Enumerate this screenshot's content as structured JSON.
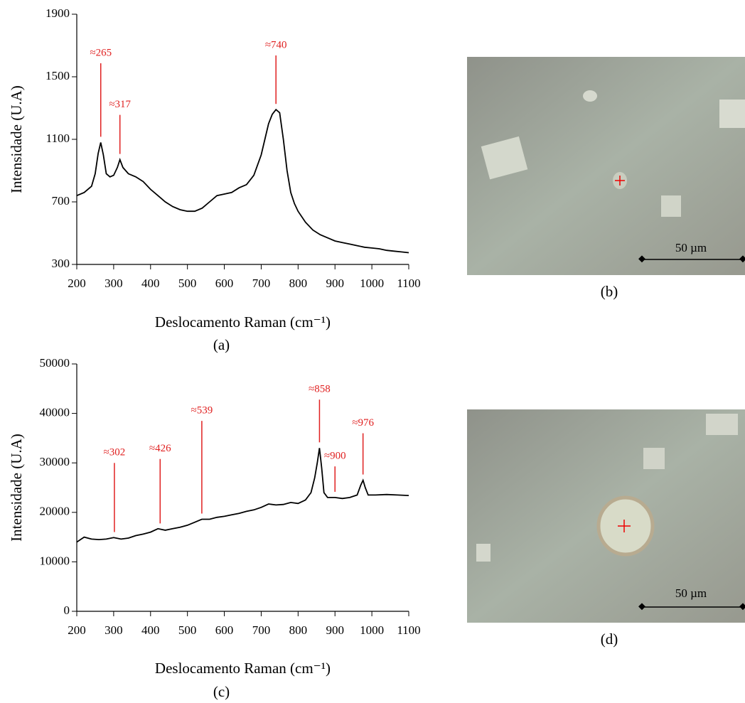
{
  "chart_data": [
    {
      "type": "line",
      "caption": "(a)",
      "ylabel": "Intensidade (U.A)",
      "xlabel": "Deslocamento Raman (cm⁻¹)",
      "color": "#000000",
      "xlim": [
        200,
        1100
      ],
      "xticks": [
        200,
        300,
        400,
        500,
        600,
        700,
        800,
        900,
        1000,
        1100
      ],
      "ylim": [
        300,
        1900
      ],
      "yticks": [
        300,
        700,
        1100,
        1500,
        1900
      ],
      "x": [
        200,
        220,
        240,
        250,
        258,
        265,
        272,
        280,
        290,
        300,
        310,
        317,
        325,
        340,
        360,
        380,
        400,
        420,
        440,
        460,
        480,
        500,
        520,
        540,
        560,
        580,
        600,
        620,
        640,
        660,
        680,
        700,
        710,
        720,
        730,
        740,
        750,
        760,
        770,
        780,
        790,
        800,
        820,
        840,
        860,
        880,
        900,
        920,
        940,
        960,
        980,
        1000,
        1020,
        1040,
        1060,
        1080,
        1100
      ],
      "values": [
        740,
        760,
        800,
        880,
        1010,
        1080,
        1000,
        880,
        860,
        870,
        920,
        970,
        920,
        880,
        860,
        830,
        780,
        740,
        700,
        670,
        650,
        640,
        640,
        660,
        700,
        740,
        750,
        760,
        790,
        810,
        870,
        1000,
        1100,
        1200,
        1260,
        1290,
        1270,
        1100,
        900,
        760,
        690,
        640,
        570,
        520,
        490,
        470,
        450,
        440,
        430,
        420,
        410,
        405,
        400,
        390,
        385,
        380,
        375
      ],
      "annotations": [
        {
          "text": "≈265",
          "x": 265,
          "y": 1650
        },
        {
          "text": "≈317",
          "x": 317,
          "y": 1320
        },
        {
          "text": "≈740",
          "x": 740,
          "y": 1700
        }
      ]
    },
    {
      "type": "line",
      "caption": "(c)",
      "ylabel": "Intensidade (U.A)",
      "xlabel": "Deslocamento Raman (cm⁻¹)",
      "color": "#000000",
      "xlim": [
        200,
        1100
      ],
      "xticks": [
        200,
        300,
        400,
        500,
        600,
        700,
        800,
        900,
        1000,
        1100
      ],
      "ylim": [
        0,
        50000
      ],
      "yticks": [
        0,
        10000,
        20000,
        30000,
        40000,
        50000
      ],
      "x": [
        200,
        220,
        240,
        260,
        280,
        300,
        320,
        340,
        360,
        380,
        400,
        420,
        440,
        460,
        480,
        500,
        520,
        539,
        560,
        580,
        600,
        620,
        640,
        660,
        680,
        700,
        720,
        740,
        760,
        780,
        800,
        820,
        835,
        845,
        852,
        858,
        864,
        870,
        880,
        900,
        920,
        940,
        960,
        970,
        976,
        982,
        990,
        1010,
        1040,
        1070,
        1100
      ],
      "values": [
        14000,
        15000,
        14600,
        14500,
        14600,
        14900,
        14600,
        14800,
        15300,
        15600,
        16000,
        16700,
        16400,
        16700,
        17000,
        17400,
        18000,
        18600,
        18600,
        19000,
        19200,
        19500,
        19800,
        20200,
        20500,
        21000,
        21700,
        21500,
        21600,
        22000,
        21800,
        22500,
        24000,
        27000,
        30000,
        33000,
        29000,
        24000,
        23000,
        23000,
        22800,
        23000,
        23500,
        25500,
        26500,
        25000,
        23500,
        23500,
        23600,
        23500,
        23400
      ],
      "annotations": [
        {
          "text": "≈302",
          "x": 302,
          "y": 32000
        },
        {
          "text": "≈426",
          "x": 426,
          "y": 32800
        },
        {
          "text": "≈539",
          "x": 539,
          "y": 40500
        },
        {
          "text": "≈858",
          "x": 858,
          "y": 44800
        },
        {
          "text": "≈900",
          "x": 900,
          "y": 31300
        },
        {
          "text": "≈976",
          "x": 976,
          "y": 38000
        }
      ]
    }
  ],
  "panels": [
    {
      "label": "(b)",
      "scale_bar": "50 µm"
    },
    {
      "label": "(d)",
      "scale_bar": "50 µm"
    }
  ]
}
